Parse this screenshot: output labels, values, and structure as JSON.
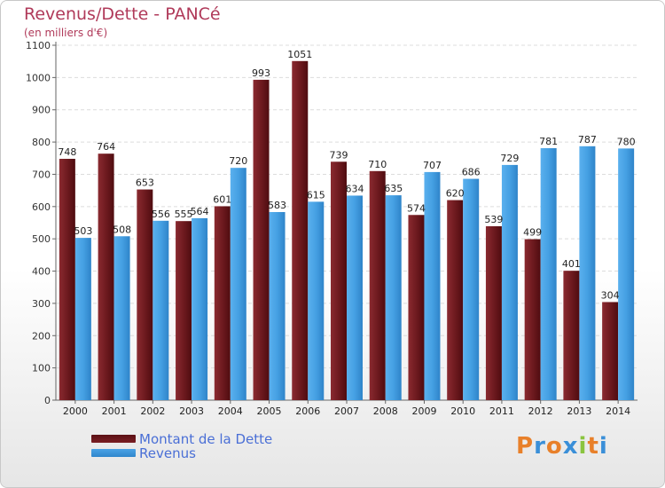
{
  "header": {
    "title": "Revenus/Dette - PANCé",
    "subtitle": "(en milliers d'€)"
  },
  "chart_data": {
    "type": "bar",
    "categories": [
      "2000",
      "2001",
      "2002",
      "2003",
      "2004",
      "2005",
      "2006",
      "2007",
      "2008",
      "2009",
      "2010",
      "2011",
      "2012",
      "2013",
      "2014"
    ],
    "series": [
      {
        "name": "Montant de la Dette",
        "color": "#7a1f24",
        "values": [
          748,
          764,
          653,
          555,
          601,
          993,
          1051,
          739,
          710,
          574,
          620,
          539,
          499,
          401,
          304
        ]
      },
      {
        "name": "Revenus",
        "color": "#4aa3e6",
        "values": [
          503,
          508,
          556,
          564,
          720,
          583,
          615,
          634,
          635,
          707,
          686,
          729,
          781,
          787,
          780
        ]
      }
    ],
    "data_labels": {
      "debt": [
        "748",
        "764",
        "653",
        "555",
        "601",
        "993",
        "1051",
        "739",
        "710",
        "574",
        "620",
        "539",
        "499",
        "401",
        "304"
      ],
      "revenue": [
        "503",
        "508",
        "556",
        "564",
        "720",
        "583",
        "615",
        "634",
        "635",
        "707",
        "686",
        "729",
        "781",
        "787",
        "780"
      ]
    },
    "yticks": [
      "0",
      "100",
      "200",
      "300",
      "400",
      "500",
      "600",
      "700",
      "800",
      "900",
      "1000",
      "1100"
    ],
    "ylim": [
      0,
      1100
    ],
    "grid": true,
    "legend_position": "bottom-left"
  },
  "legend": {
    "items": [
      {
        "label": "Montant de la Dette",
        "color": "#7a1f24"
      },
      {
        "label": "Revenus",
        "color": "#4aa3e6"
      }
    ]
  },
  "logo": {
    "letters": [
      "P",
      "r",
      "o",
      "x",
      "i",
      "t",
      "i"
    ],
    "colors": [
      "#e8802a",
      "#3a8fd8",
      "#e8802a",
      "#3a8fd8",
      "#8ac43f",
      "#e8802a",
      "#3a8fd8"
    ]
  }
}
